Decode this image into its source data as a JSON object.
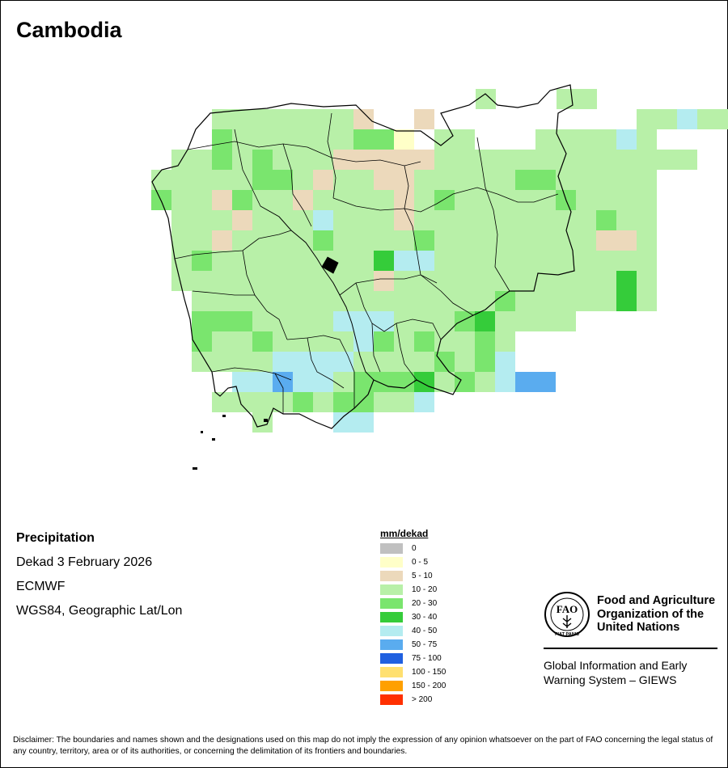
{
  "title": "Cambodia",
  "info": {
    "variable": "Precipitation",
    "period": "Dekad 3 February 2026",
    "source": "ECMWF",
    "projection": "WGS84, Geographic Lat/Lon"
  },
  "legend": {
    "title": "mm/dekad",
    "items": [
      {
        "label": "0",
        "color": "#c0c0c0"
      },
      {
        "label": "0 - 5",
        "color": "#ffffc8"
      },
      {
        "label": "5 - 10",
        "color": "#ecd9bb"
      },
      {
        "label": "10 - 20",
        "color": "#b8f0a8"
      },
      {
        "label": "20 - 30",
        "color": "#7ae56e"
      },
      {
        "label": "30 - 40",
        "color": "#35cc3a"
      },
      {
        "label": "40 - 50",
        "color": "#b4ecf0"
      },
      {
        "label": "50 - 75",
        "color": "#5aacef"
      },
      {
        "label": "75 - 100",
        "color": "#2060e0"
      },
      {
        "label": "100 - 150",
        "color": "#ffe070"
      },
      {
        "label": "150 - 200",
        "color": "#ffa000"
      },
      {
        "label": "> 200",
        "color": "#ff3000"
      }
    ]
  },
  "organization": {
    "name_line1": "Food and Agriculture",
    "name_line2": "Organization of the",
    "name_line3": "United Nations",
    "logo_letters": "FAO",
    "logo_motto": "FIAT PANIS",
    "system_line1": "Global Information and Early",
    "system_line2": "Warning System – GIEWS"
  },
  "disclaimer": "Disclaimer: The boundaries and names shown and the designations used on this map do not imply the expression of any opinion whatsoever on the part of FAO concerning the legal status of any country, territory, area or of its authorities, or concerning the delimitation of its frontiers and boundaries."
}
